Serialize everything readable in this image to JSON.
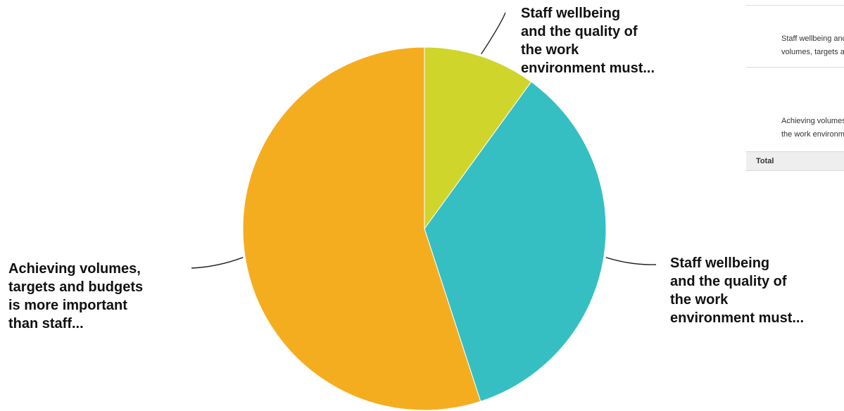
{
  "chart_data": {
    "type": "pie",
    "slices": [
      {
        "label": "Staff wellbeing\nand the quality of\nthe work\nenvironment must...",
        "value": 10,
        "color": "#cfd52b"
      },
      {
        "label": "Staff wellbeing\nand the quality of\nthe work\nenvironment must...",
        "value": 35,
        "color": "#35bfc2"
      },
      {
        "label": "Achieving volumes,\ntargets and budgets\nis more important\nthan staff...",
        "value": 55,
        "color": "#f5ad20"
      }
    ]
  },
  "table": {
    "rows": [
      {
        "text": "Staff wellbeing and the quality of the work environment must not suffer from trying to achieve volumes, targets and budgets"
      },
      {
        "text": "Achieving volumes, targets and budgets is more important than staff wellbeing and the quality of the work environment"
      }
    ],
    "total_label": "Total"
  }
}
